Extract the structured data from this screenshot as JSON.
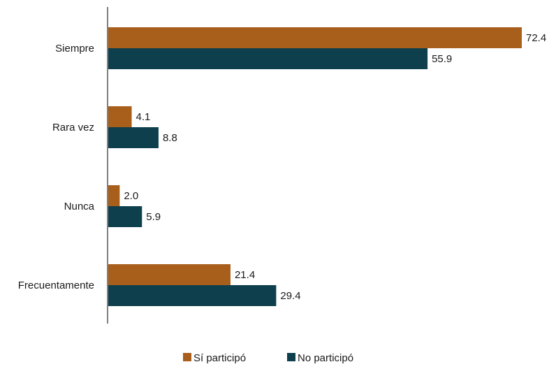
{
  "chart_data": {
    "type": "bar",
    "orientation": "horizontal",
    "categories": [
      "Siempre",
      "Rara vez",
      "Nunca",
      "Frecuentamente"
    ],
    "series": [
      {
        "name": "Sí participó",
        "values": [
          72.4,
          4.1,
          2.0,
          21.4
        ],
        "color": "#A85F1C"
      },
      {
        "name": "No participó",
        "values": [
          55.9,
          8.8,
          5.9,
          29.4
        ],
        "color": "#0E3F4C"
      }
    ],
    "value_labels": {
      "Sí participó": [
        "72.4",
        "4.1",
        "2.0",
        "21.4"
      ],
      "No participó": [
        "55.9",
        "8.8",
        "5.9",
        "29.4"
      ]
    },
    "xlim": [
      0,
      72.4
    ],
    "grid": false,
    "legend_position": "bottom-center"
  }
}
